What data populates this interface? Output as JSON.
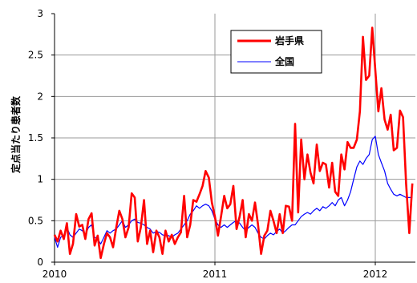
{
  "chart_data": {
    "type": "line",
    "ylabel": "定点当たり患者数",
    "ylim": [
      0,
      3
    ],
    "yticks": [
      "0",
      "0.5",
      "1",
      "1.5",
      "2",
      "2.5",
      "3"
    ],
    "xlim": [
      2010.0,
      2012.25
    ],
    "xticks": [
      {
        "value": 2010,
        "label": "2010"
      },
      {
        "value": 2011,
        "label": "2011"
      },
      {
        "value": 2012,
        "label": "2012"
      }
    ],
    "grid": true,
    "legend": "top-center",
    "series": [
      {
        "name": "岩手県",
        "color": "#ff0000",
        "points": [
          [
            2010.0,
            0.33
          ],
          [
            2010.019,
            0.25
          ],
          [
            2010.038,
            0.38
          ],
          [
            2010.058,
            0.28
          ],
          [
            2010.077,
            0.47
          ],
          [
            2010.096,
            0.1
          ],
          [
            2010.115,
            0.22
          ],
          [
            2010.135,
            0.58
          ],
          [
            2010.154,
            0.43
          ],
          [
            2010.173,
            0.45
          ],
          [
            2010.192,
            0.28
          ],
          [
            2010.212,
            0.52
          ],
          [
            2010.231,
            0.59
          ],
          [
            2010.25,
            0.2
          ],
          [
            2010.269,
            0.32
          ],
          [
            2010.288,
            0.05
          ],
          [
            2010.308,
            0.22
          ],
          [
            2010.327,
            0.35
          ],
          [
            2010.346,
            0.3
          ],
          [
            2010.365,
            0.18
          ],
          [
            2010.385,
            0.42
          ],
          [
            2010.404,
            0.62
          ],
          [
            2010.423,
            0.52
          ],
          [
            2010.442,
            0.3
          ],
          [
            2010.462,
            0.42
          ],
          [
            2010.481,
            0.83
          ],
          [
            2010.5,
            0.78
          ],
          [
            2010.519,
            0.25
          ],
          [
            2010.538,
            0.42
          ],
          [
            2010.558,
            0.75
          ],
          [
            2010.577,
            0.22
          ],
          [
            2010.596,
            0.38
          ],
          [
            2010.615,
            0.12
          ],
          [
            2010.635,
            0.38
          ],
          [
            2010.654,
            0.3
          ],
          [
            2010.673,
            0.1
          ],
          [
            2010.692,
            0.38
          ],
          [
            2010.712,
            0.25
          ],
          [
            2010.731,
            0.33
          ],
          [
            2010.75,
            0.22
          ],
          [
            2010.769,
            0.3
          ],
          [
            2010.788,
            0.36
          ],
          [
            2010.808,
            0.8
          ],
          [
            2010.827,
            0.3
          ],
          [
            2010.846,
            0.45
          ],
          [
            2010.865,
            0.75
          ],
          [
            2010.885,
            0.73
          ],
          [
            2010.904,
            0.82
          ],
          [
            2010.923,
            0.92
          ],
          [
            2010.942,
            1.1
          ],
          [
            2010.962,
            1.02
          ],
          [
            2010.981,
            0.72
          ],
          [
            2011.0,
            0.55
          ],
          [
            2011.019,
            0.32
          ],
          [
            2011.038,
            0.55
          ],
          [
            2011.058,
            0.8
          ],
          [
            2011.077,
            0.65
          ],
          [
            2011.096,
            0.7
          ],
          [
            2011.115,
            0.92
          ],
          [
            2011.135,
            0.4
          ],
          [
            2011.154,
            0.55
          ],
          [
            2011.173,
            0.75
          ],
          [
            2011.192,
            0.3
          ],
          [
            2011.212,
            0.58
          ],
          [
            2011.231,
            0.5
          ],
          [
            2011.25,
            0.72
          ],
          [
            2011.269,
            0.45
          ],
          [
            2011.288,
            0.1
          ],
          [
            2011.308,
            0.32
          ],
          [
            2011.327,
            0.38
          ],
          [
            2011.346,
            0.62
          ],
          [
            2011.365,
            0.5
          ],
          [
            2011.385,
            0.35
          ],
          [
            2011.404,
            0.58
          ],
          [
            2011.423,
            0.35
          ],
          [
            2011.442,
            0.68
          ],
          [
            2011.462,
            0.67
          ],
          [
            2011.481,
            0.5
          ],
          [
            2011.5,
            1.67
          ],
          [
            2011.519,
            0.6
          ],
          [
            2011.538,
            1.48
          ],
          [
            2011.558,
            1.0
          ],
          [
            2011.577,
            1.3
          ],
          [
            2011.596,
            1.08
          ],
          [
            2011.615,
            0.95
          ],
          [
            2011.635,
            1.42
          ],
          [
            2011.654,
            1.1
          ],
          [
            2011.673,
            1.2
          ],
          [
            2011.692,
            1.18
          ],
          [
            2011.712,
            0.9
          ],
          [
            2011.731,
            1.2
          ],
          [
            2011.75,
            0.85
          ],
          [
            2011.769,
            0.8
          ],
          [
            2011.788,
            1.3
          ],
          [
            2011.808,
            1.12
          ],
          [
            2011.827,
            1.45
          ],
          [
            2011.846,
            1.38
          ],
          [
            2011.865,
            1.38
          ],
          [
            2011.885,
            1.48
          ],
          [
            2011.904,
            1.82
          ],
          [
            2011.923,
            2.72
          ],
          [
            2011.942,
            2.2
          ],
          [
            2011.962,
            2.25
          ],
          [
            2011.981,
            2.83
          ],
          [
            2012.0,
            2.32
          ],
          [
            2012.019,
            1.82
          ],
          [
            2012.038,
            2.1
          ],
          [
            2012.058,
            1.72
          ],
          [
            2012.077,
            1.6
          ],
          [
            2012.096,
            1.78
          ],
          [
            2012.115,
            1.35
          ],
          [
            2012.135,
            1.38
          ],
          [
            2012.154,
            1.83
          ],
          [
            2012.173,
            1.75
          ],
          [
            2012.192,
            0.95
          ],
          [
            2012.212,
            0.35
          ],
          [
            2012.231,
            0.95
          ]
        ]
      },
      {
        "name": "全国",
        "color": "#0000ff",
        "points": [
          [
            2010.0,
            0.3
          ],
          [
            2010.019,
            0.18
          ],
          [
            2010.038,
            0.3
          ],
          [
            2010.058,
            0.32
          ],
          [
            2010.077,
            0.42
          ],
          [
            2010.096,
            0.33
          ],
          [
            2010.115,
            0.3
          ],
          [
            2010.135,
            0.35
          ],
          [
            2010.154,
            0.4
          ],
          [
            2010.173,
            0.38
          ],
          [
            2010.192,
            0.33
          ],
          [
            2010.212,
            0.42
          ],
          [
            2010.231,
            0.45
          ],
          [
            2010.25,
            0.3
          ],
          [
            2010.269,
            0.28
          ],
          [
            2010.288,
            0.22
          ],
          [
            2010.308,
            0.3
          ],
          [
            2010.327,
            0.38
          ],
          [
            2010.346,
            0.35
          ],
          [
            2010.365,
            0.38
          ],
          [
            2010.385,
            0.4
          ],
          [
            2010.404,
            0.45
          ],
          [
            2010.423,
            0.5
          ],
          [
            2010.442,
            0.42
          ],
          [
            2010.462,
            0.45
          ],
          [
            2010.481,
            0.5
          ],
          [
            2010.5,
            0.52
          ],
          [
            2010.519,
            0.48
          ],
          [
            2010.538,
            0.47
          ],
          [
            2010.558,
            0.45
          ],
          [
            2010.577,
            0.42
          ],
          [
            2010.596,
            0.4
          ],
          [
            2010.615,
            0.35
          ],
          [
            2010.635,
            0.37
          ],
          [
            2010.654,
            0.36
          ],
          [
            2010.673,
            0.33
          ],
          [
            2010.692,
            0.32
          ],
          [
            2010.712,
            0.32
          ],
          [
            2010.731,
            0.3
          ],
          [
            2010.75,
            0.33
          ],
          [
            2010.769,
            0.35
          ],
          [
            2010.788,
            0.4
          ],
          [
            2010.808,
            0.45
          ],
          [
            2010.827,
            0.5
          ],
          [
            2010.846,
            0.58
          ],
          [
            2010.865,
            0.62
          ],
          [
            2010.885,
            0.68
          ],
          [
            2010.904,
            0.65
          ],
          [
            2010.923,
            0.68
          ],
          [
            2010.942,
            0.7
          ],
          [
            2010.962,
            0.68
          ],
          [
            2010.981,
            0.62
          ],
          [
            2011.0,
            0.52
          ],
          [
            2011.019,
            0.45
          ],
          [
            2011.038,
            0.42
          ],
          [
            2011.058,
            0.45
          ],
          [
            2011.077,
            0.42
          ],
          [
            2011.096,
            0.45
          ],
          [
            2011.115,
            0.48
          ],
          [
            2011.135,
            0.5
          ],
          [
            2011.154,
            0.47
          ],
          [
            2011.173,
            0.42
          ],
          [
            2011.192,
            0.38
          ],
          [
            2011.212,
            0.42
          ],
          [
            2011.231,
            0.45
          ],
          [
            2011.25,
            0.42
          ],
          [
            2011.269,
            0.35
          ],
          [
            2011.288,
            0.3
          ],
          [
            2011.308,
            0.28
          ],
          [
            2011.327,
            0.32
          ],
          [
            2011.346,
            0.35
          ],
          [
            2011.365,
            0.33
          ],
          [
            2011.385,
            0.37
          ],
          [
            2011.404,
            0.4
          ],
          [
            2011.423,
            0.35
          ],
          [
            2011.442,
            0.38
          ],
          [
            2011.462,
            0.42
          ],
          [
            2011.481,
            0.45
          ],
          [
            2011.5,
            0.45
          ],
          [
            2011.519,
            0.5
          ],
          [
            2011.538,
            0.55
          ],
          [
            2011.558,
            0.58
          ],
          [
            2011.577,
            0.6
          ],
          [
            2011.596,
            0.58
          ],
          [
            2011.615,
            0.62
          ],
          [
            2011.635,
            0.65
          ],
          [
            2011.654,
            0.62
          ],
          [
            2011.673,
            0.67
          ],
          [
            2011.692,
            0.65
          ],
          [
            2011.712,
            0.68
          ],
          [
            2011.731,
            0.72
          ],
          [
            2011.75,
            0.68
          ],
          [
            2011.769,
            0.75
          ],
          [
            2011.788,
            0.78
          ],
          [
            2011.808,
            0.68
          ],
          [
            2011.827,
            0.75
          ],
          [
            2011.846,
            0.85
          ],
          [
            2011.865,
            1.0
          ],
          [
            2011.885,
            1.15
          ],
          [
            2011.904,
            1.22
          ],
          [
            2011.923,
            1.18
          ],
          [
            2011.942,
            1.25
          ],
          [
            2011.962,
            1.3
          ],
          [
            2011.981,
            1.48
          ],
          [
            2012.0,
            1.52
          ],
          [
            2012.019,
            1.3
          ],
          [
            2012.038,
            1.2
          ],
          [
            2012.058,
            1.1
          ],
          [
            2012.077,
            0.95
          ],
          [
            2012.096,
            0.88
          ],
          [
            2012.115,
            0.82
          ],
          [
            2012.135,
            0.8
          ],
          [
            2012.154,
            0.82
          ],
          [
            2012.173,
            0.8
          ],
          [
            2012.192,
            0.78
          ],
          [
            2012.212,
            0.78
          ],
          [
            2012.231,
            0.78
          ]
        ]
      }
    ]
  }
}
